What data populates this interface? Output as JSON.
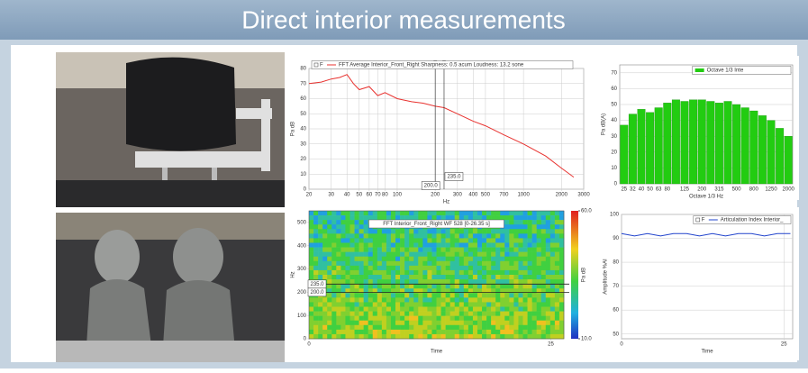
{
  "header": {
    "title": "Direct interior measurements"
  },
  "chart_data": [
    {
      "type": "line",
      "legend_prefix": "F",
      "xscale": "log",
      "xlabel": "Hz",
      "ylabel": "Pa dB",
      "x": [
        20,
        25,
        30,
        35,
        40,
        45,
        50,
        60,
        70,
        80,
        100,
        130,
        160,
        200,
        235,
        300,
        400,
        500,
        700,
        1000,
        1500,
        2000,
        2500
      ],
      "series": [
        {
          "name": "FFT Average Interior_Front_Right  Sharpness: 0.5 acum  Loudness: 13.2 sone",
          "color": "#e8322f",
          "values": [
            70,
            71,
            73,
            74,
            76,
            70,
            66,
            68,
            62,
            64,
            60,
            58,
            57,
            55,
            54,
            50,
            45,
            42,
            36,
            30,
            22,
            14,
            8
          ]
        }
      ],
      "xlim": [
        20,
        3000
      ],
      "xticks": [
        20,
        30,
        40,
        50,
        60,
        70,
        80,
        100,
        200,
        300,
        400,
        500,
        700,
        1000,
        2000,
        3000
      ],
      "ylim": [
        0,
        80
      ],
      "yticks": [
        0,
        10,
        20,
        30,
        40,
        50,
        60,
        70,
        80
      ],
      "grid": true,
      "cursors": [
        {
          "value": 200,
          "label": "200.0"
        },
        {
          "value": 235,
          "label": "235.0"
        }
      ]
    },
    {
      "type": "bar",
      "xlabel": "Octave 1/3 Hz",
      "ylabel": "Pa dB(A)",
      "categories": [
        "25",
        "32",
        "40",
        "50",
        "63",
        "80",
        null,
        "125",
        null,
        "200",
        null,
        "315",
        null,
        "500",
        null,
        "800",
        null,
        "1250",
        null,
        "2000"
      ],
      "series": [
        {
          "name": "Octave 1/3 Inte",
          "color": "#22cc11",
          "values": [
            37,
            44,
            47,
            45,
            48,
            51,
            53,
            52,
            53,
            53,
            52,
            51,
            52,
            50,
            48,
            46,
            43,
            40,
            35,
            30
          ]
        }
      ],
      "ylim": [
        0,
        75
      ],
      "yticks": [
        0,
        10,
        20,
        30,
        40,
        50,
        60,
        70
      ],
      "grid": true
    },
    {
      "type": "heatmap",
      "title": "FFT Interior_Front_Right WF 528 [0-26.35 s]",
      "xlabel": "Time",
      "ylabel": "Hz",
      "zlabel": "Pa dB",
      "xlim": [
        0,
        26.35
      ],
      "xticks": [
        0,
        25
      ],
      "ylim": [
        0,
        550
      ],
      "yticks": [
        0,
        100,
        200,
        300,
        400,
        500
      ],
      "zlim": [
        10,
        60
      ],
      "zticks": [
        {
          "value": 60,
          "label": "60.0"
        },
        {
          "value": 10,
          "label": "10.0"
        }
      ],
      "cursors": [
        {
          "value": 235,
          "label": "235.0"
        },
        {
          "value": 200,
          "label": "200.0"
        }
      ]
    },
    {
      "type": "line",
      "legend_prefix": "F",
      "xlabel": "Time",
      "ylabel": "Amplitude %AI",
      "x": [
        0,
        2,
        4,
        6,
        8,
        10,
        12,
        14,
        16,
        18,
        20,
        22,
        24,
        26
      ],
      "series": [
        {
          "name": "Articulation Index Interior_",
          "color": "#2244cc",
          "values": [
            92,
            91,
            92,
            91,
            92,
            92,
            91,
            92,
            91,
            92,
            92,
            91,
            92,
            92
          ]
        }
      ],
      "xlim": [
        0,
        26.35
      ],
      "xticks": [
        0,
        25
      ],
      "ylim": [
        48,
        100
      ],
      "yticks": [
        50,
        60,
        70,
        80,
        90,
        100
      ],
      "grid": true
    }
  ]
}
